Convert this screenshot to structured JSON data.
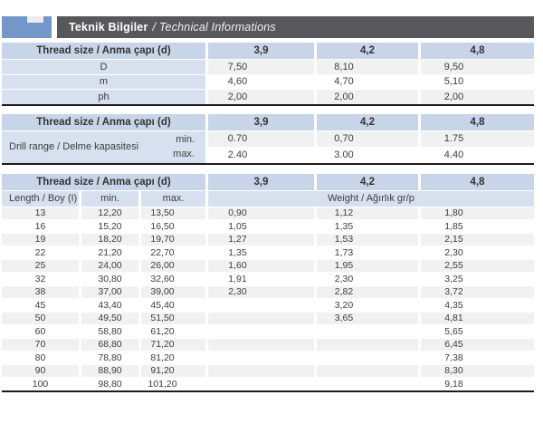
{
  "header": {
    "title_tr": "Teknik Bilgiler",
    "title_en": "/ Technical Informations"
  },
  "colors": {
    "accent_blue": "#7397c9",
    "titlebar_gray": "#58585a",
    "header_cell_blue": "#c8d5e9",
    "label_cell_blue": "#d6e0ef",
    "stripe_gray": "#f1f1f2",
    "table_bottom_border": "#1b1b1b"
  },
  "table1": {
    "header": {
      "label": "Thread size / Anma çapı (d)",
      "cols": [
        "3,9",
        "4,2",
        "4,8"
      ]
    },
    "rows": [
      {
        "label": "D",
        "values": [
          "7,50",
          "8,10",
          "9,50"
        ]
      },
      {
        "label": "m",
        "values": [
          "4,60",
          "4,70",
          "5,10"
        ]
      },
      {
        "label": "ph",
        "values": [
          "2,00",
          "2,00",
          "2,00"
        ]
      }
    ]
  },
  "table2": {
    "header": {
      "label": "Thread size / Anma çapı (d)",
      "cols": [
        "3,9",
        "4,2",
        "4,8"
      ]
    },
    "row_label": "Drill range / Delme kapasitesi",
    "sub_rows": [
      {
        "label": "min.",
        "values": [
          "0.70",
          "0,70",
          "1.75"
        ]
      },
      {
        "label": "max.",
        "values": [
          "2.40",
          "3.00",
          "4.40"
        ]
      }
    ]
  },
  "table3": {
    "header": {
      "label": "Thread size / Anma çapı (d)",
      "cols": [
        "3,9",
        "4,2",
        "4,8"
      ]
    },
    "subheader": {
      "length": "Length / Boy (I)",
      "min": "min.",
      "max": "max.",
      "weight": "Weight / Ağırlık gr/p"
    },
    "rows": [
      {
        "length": "13",
        "min": "12,20",
        "max": "13,50",
        "weights": [
          "0,90",
          "1,12",
          "1,80"
        ]
      },
      {
        "length": "16",
        "min": "15,20",
        "max": "16,50",
        "weights": [
          "1,05",
          "1,35",
          "1,85"
        ]
      },
      {
        "length": "19",
        "min": "18,20",
        "max": "19,70",
        "weights": [
          "1,27",
          "1,53",
          "2,15"
        ]
      },
      {
        "length": "22",
        "min": "21,20",
        "max": "22,70",
        "weights": [
          "1,35",
          "1,73",
          "2,30"
        ]
      },
      {
        "length": "25",
        "min": "24,00",
        "max": "26,00",
        "weights": [
          "1,60",
          "1,95",
          "2,55"
        ]
      },
      {
        "length": "32",
        "min": "30,80",
        "max": "32,60",
        "weights": [
          "1,91",
          "2,30",
          "3,25"
        ]
      },
      {
        "length": "38",
        "min": "37,00",
        "max": "39,00",
        "weights": [
          "2,30",
          "2,82",
          "3,72"
        ]
      },
      {
        "length": "45",
        "min": "43,40",
        "max": "45,40",
        "weights": [
          "",
          "3,20",
          "4,35"
        ]
      },
      {
        "length": "50",
        "min": "49,50",
        "max": "51,50",
        "weights": [
          "",
          "3,65",
          "4,81"
        ]
      },
      {
        "length": "60",
        "min": "58,80",
        "max": "61,20",
        "weights": [
          "",
          "",
          "5,65"
        ]
      },
      {
        "length": "70",
        "min": "68,80",
        "max": "71,20",
        "weights": [
          "",
          "",
          "6,45"
        ]
      },
      {
        "length": "80",
        "min": "78,80",
        "max": "81,20",
        "weights": [
          "",
          "",
          "7,38"
        ]
      },
      {
        "length": "90",
        "min": "88,90",
        "max": "91,20",
        "weights": [
          "",
          "",
          "8,30"
        ]
      },
      {
        "length": "100",
        "min": "98,80",
        "max": "101,20",
        "weights": [
          "",
          "",
          "9,18"
        ]
      }
    ]
  }
}
